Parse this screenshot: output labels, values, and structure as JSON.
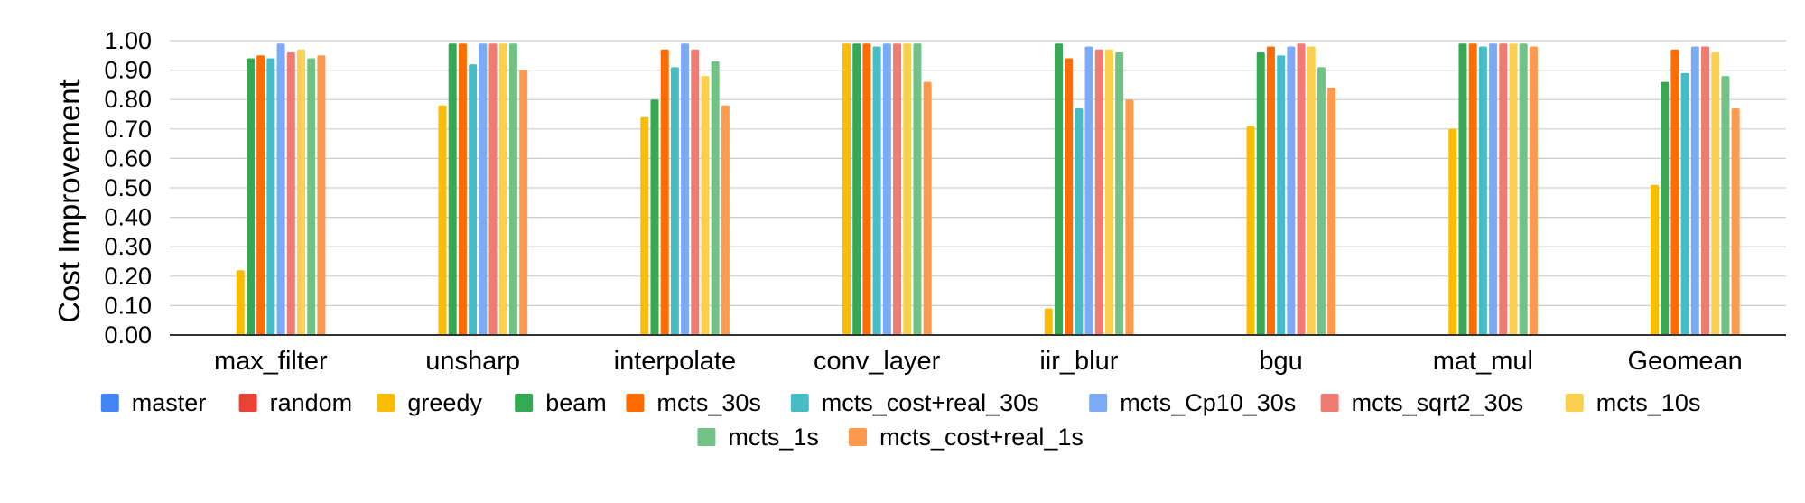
{
  "chart_data": {
    "type": "bar",
    "title": "",
    "xlabel": "",
    "ylabel": "Cost Improvement",
    "ylim": [
      0,
      1
    ],
    "yticks": [
      "0.00",
      "0.10",
      "0.20",
      "0.30",
      "0.40",
      "0.50",
      "0.60",
      "0.70",
      "0.80",
      "0.90",
      "1.00"
    ],
    "grid": true,
    "legend_position": "bottom",
    "categories": [
      "max_filter",
      "unsharp",
      "interpolate",
      "conv_layer",
      "iir_blur",
      "bgu",
      "mat_mul",
      "Geomean"
    ],
    "series": [
      {
        "name": "master",
        "color": "#4285f4",
        "values": [
          0,
          0,
          0,
          0,
          0,
          0,
          0,
          0
        ]
      },
      {
        "name": "random",
        "color": "#ea4335",
        "values": [
          0,
          0,
          0,
          0,
          0,
          0,
          0,
          0
        ]
      },
      {
        "name": "greedy",
        "color": "#fbbc04",
        "values": [
          0.22,
          0.78,
          0.74,
          0.99,
          0.09,
          0.71,
          0.7,
          0.51
        ]
      },
      {
        "name": "beam",
        "color": "#34a853",
        "values": [
          0.94,
          0.99,
          0.8,
          0.99,
          0.99,
          0.96,
          0.99,
          0.86
        ]
      },
      {
        "name": "mcts_30s",
        "color": "#ff6d01",
        "values": [
          0.95,
          0.99,
          0.97,
          0.99,
          0.94,
          0.98,
          0.99,
          0.97
        ]
      },
      {
        "name": "mcts_cost+real_30s",
        "color": "#46bdc6",
        "values": [
          0.94,
          0.92,
          0.91,
          0.98,
          0.77,
          0.95,
          0.98,
          0.89
        ]
      },
      {
        "name": "mcts_Cp10_30s",
        "color": "#7baaf7",
        "values": [
          0.99,
          0.99,
          0.99,
          0.99,
          0.98,
          0.98,
          0.99,
          0.98
        ]
      },
      {
        "name": "mcts_sqrt2_30s",
        "color": "#f07b72",
        "values": [
          0.96,
          0.99,
          0.97,
          0.99,
          0.97,
          0.99,
          0.99,
          0.98
        ]
      },
      {
        "name": "mcts_10s",
        "color": "#fcd04f",
        "values": [
          0.97,
          0.99,
          0.88,
          0.99,
          0.97,
          0.98,
          0.99,
          0.96
        ]
      },
      {
        "name": "mcts_1s",
        "color": "#71c287",
        "values": [
          0.94,
          0.99,
          0.93,
          0.99,
          0.96,
          0.91,
          0.99,
          0.88
        ]
      },
      {
        "name": "mcts_cost+real_1s",
        "color": "#ff994d",
        "values": [
          0.95,
          0.9,
          0.78,
          0.86,
          0.8,
          0.84,
          0.98,
          0.77
        ]
      }
    ]
  }
}
